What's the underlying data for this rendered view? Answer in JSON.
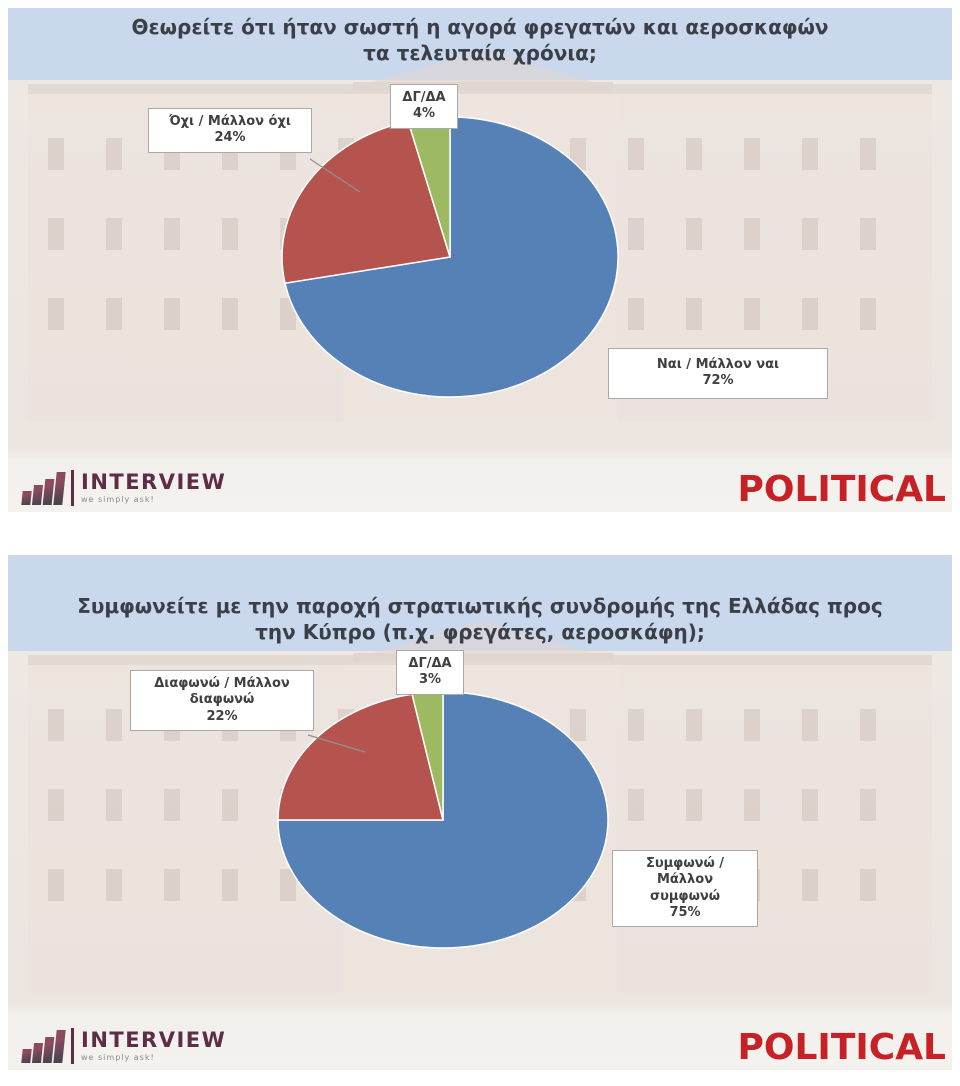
{
  "chart_data": [
    {
      "type": "pie",
      "title": "Θεωρείτε ότι ήταν σωστή η αγορά φρεγατών και αεροσκαφών τα τελευταία χρόνια;",
      "start_angle_deg": 0,
      "direction": "clockwise",
      "legend": "none",
      "data_labels": "callout-boxes",
      "slices": [
        {
          "label": "Ναι / Μάλλον ναι",
          "value": 72,
          "pct_label": "72%",
          "color": "#5581b7"
        },
        {
          "label": "Όχι / Μάλλον όχι",
          "value": 24,
          "pct_label": "24%",
          "color": "#b5544f"
        },
        {
          "label": "ΔΓ/ΔΑ",
          "value": 4,
          "pct_label": "4%",
          "color": "#9dba62"
        }
      ]
    },
    {
      "type": "pie",
      "title": "Συμφωνείτε με την παροχή στρατιωτικής συνδρομής της Ελλάδας προς την Κύπρο (π.χ. φρεγάτες, αεροσκάφη);",
      "start_angle_deg": 0,
      "direction": "clockwise",
      "legend": "none",
      "data_labels": "callout-boxes",
      "slices": [
        {
          "label": "Συμφωνώ / Μάλλον συμφωνώ",
          "value": 75,
          "pct_label": "75%",
          "color": "#5581b7"
        },
        {
          "label": "Διαφωνώ / Μάλλον διαφωνώ",
          "value": 22,
          "pct_label": "22%",
          "color": "#b5544f"
        },
        {
          "label": "ΔΓ/ΔΑ",
          "value": 3,
          "pct_label": "3%",
          "color": "#9dba62"
        }
      ]
    }
  ],
  "branding": {
    "interview_name": "INTERVIEW",
    "interview_tagline": "we simply ask!",
    "interview_color": "#5d2c45",
    "political_name": "POLITICAL",
    "political_color": "#c52127"
  }
}
